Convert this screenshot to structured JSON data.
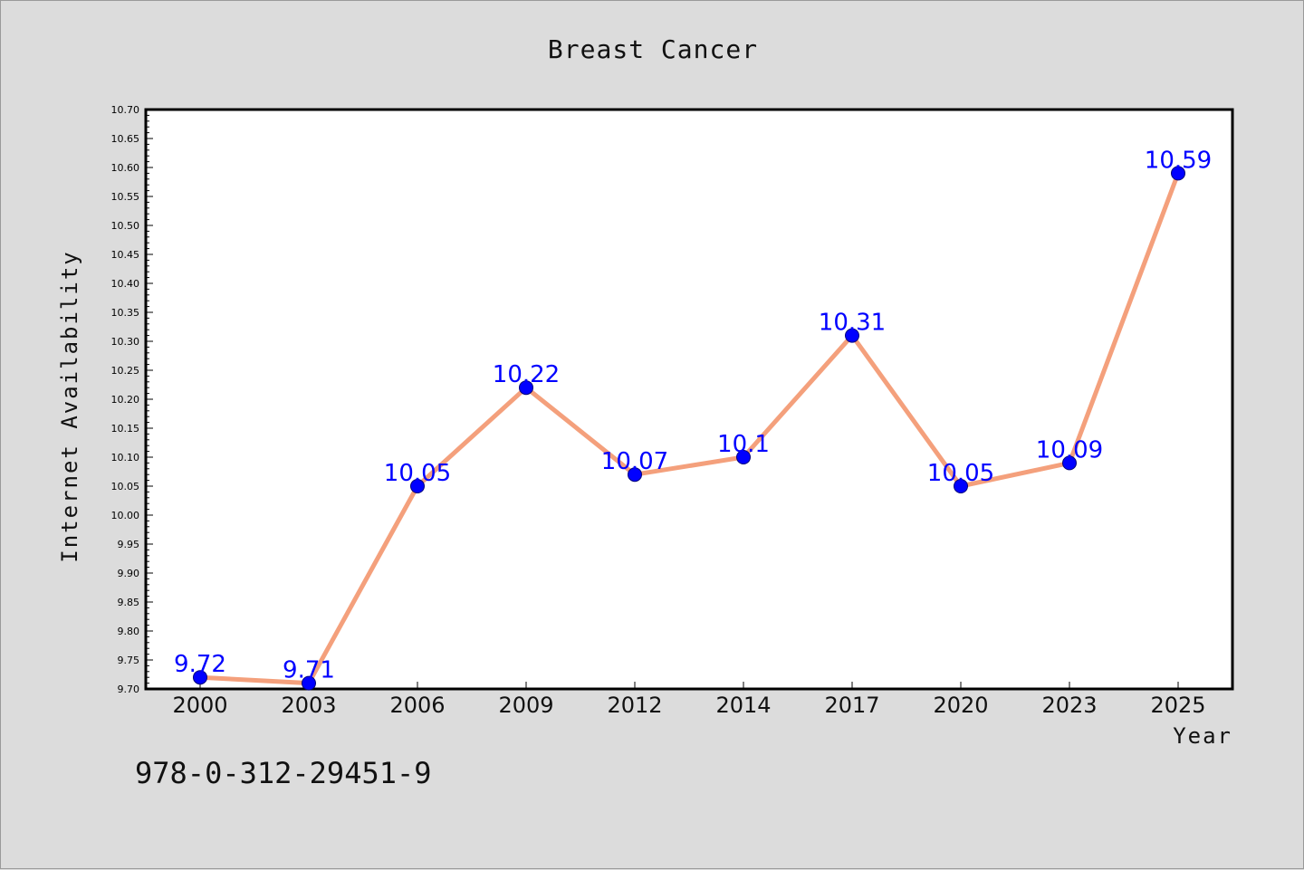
{
  "chart_data": {
    "type": "line",
    "title": "Breast Cancer",
    "xlabel": "Year",
    "ylabel": "Internet Availability",
    "categories": [
      "2000",
      "2003",
      "2006",
      "2009",
      "2012",
      "2014",
      "2017",
      "2020",
      "2023",
      "2025"
    ],
    "values": [
      9.72,
      9.71,
      10.05,
      10.22,
      10.07,
      10.1,
      10.31,
      10.05,
      10.09,
      10.59
    ],
    "data_labels": [
      "9.72",
      "9.71",
      "10.05",
      "10.22",
      "10.07",
      "10.1",
      "10.31",
      "10.05",
      "10.09",
      "10.59"
    ],
    "ylim": [
      9.7,
      10.7
    ],
    "yticks": [
      "9.70",
      "9.75",
      "9.80",
      "9.85",
      "9.90",
      "9.95",
      "10.00",
      "10.05",
      "10.10",
      "10.15",
      "10.20",
      "10.25",
      "10.30",
      "10.35",
      "10.40",
      "10.45",
      "10.50",
      "10.55",
      "10.60",
      "10.65",
      "10.70"
    ],
    "grid": false,
    "line_color": "#f4a07c",
    "marker_color": "#0000ff",
    "label_color": "#0000ff"
  },
  "footer": {
    "code": "978-0-312-29451-9"
  }
}
